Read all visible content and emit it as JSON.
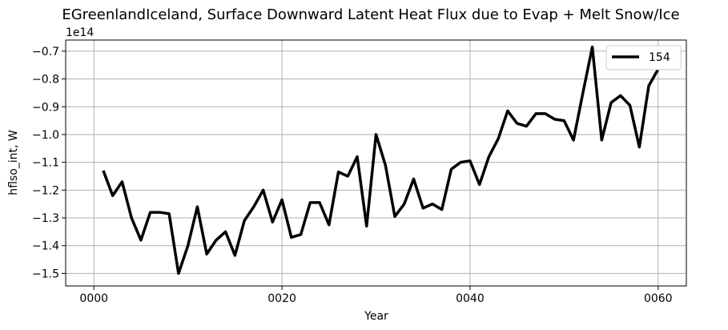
{
  "chart_data": {
    "type": "line",
    "title": "EGreenlandIceland, Surface Downward Latent Heat Flux due to Evap + Melt Snow/Ice",
    "xlabel": "Year",
    "ylabel": "hflso_int, W",
    "y_offset_label": "1e14",
    "xlim": [
      -3,
      63
    ],
    "ylim": [
      -15.45,
      -6.6
    ],
    "x_ticks": [
      0,
      20,
      40,
      60
    ],
    "x_tick_labels": [
      "0000",
      "0020",
      "0040",
      "0060"
    ],
    "y_ticks": [
      -15,
      -14,
      -13,
      -12,
      -11,
      -10,
      -9,
      -8,
      -7
    ],
    "y_tick_labels": [
      "−1.5",
      "−1.4",
      "−1.3",
      "−1.2",
      "−1.1",
      "−1.0",
      "−0.9",
      "−0.8",
      "−0.7"
    ],
    "grid": true,
    "legend_position": "top-right",
    "series": [
      {
        "name": "154",
        "color": "#000000",
        "x": [
          1,
          2,
          3,
          4,
          5,
          6,
          7,
          8,
          9,
          10,
          11,
          12,
          13,
          14,
          15,
          16,
          17,
          18,
          19,
          20,
          21,
          22,
          23,
          24,
          25,
          26,
          27,
          28,
          29,
          30,
          31,
          32,
          33,
          34,
          35,
          36,
          37,
          38,
          39,
          40,
          41,
          42,
          43,
          44,
          45,
          46,
          47,
          48,
          49,
          50,
          51,
          52,
          53,
          54,
          55,
          56,
          57,
          58,
          59,
          60
        ],
        "values": [
          -11.3,
          -12.2,
          -11.7,
          -13.0,
          -13.8,
          -12.8,
          -12.8,
          -12.85,
          -15.0,
          -14.0,
          -12.6,
          -14.3,
          -13.8,
          -13.5,
          -14.35,
          -13.1,
          -12.6,
          -12.0,
          -13.15,
          -12.35,
          -13.7,
          -13.6,
          -12.45,
          -12.45,
          -13.25,
          -11.35,
          -11.5,
          -10.8,
          -13.3,
          -10.0,
          -11.1,
          -12.95,
          -12.5,
          -11.6,
          -12.65,
          -12.5,
          -12.7,
          -11.25,
          -11.0,
          -10.95,
          -11.8,
          -10.8,
          -10.15,
          -9.15,
          -9.6,
          -9.7,
          -9.25,
          -9.25,
          -9.45,
          -9.5,
          -10.2,
          -8.5,
          -6.85,
          -10.2,
          -8.85,
          -8.6,
          -8.95,
          -10.45,
          -8.25,
          -7.65
        ]
      }
    ]
  }
}
